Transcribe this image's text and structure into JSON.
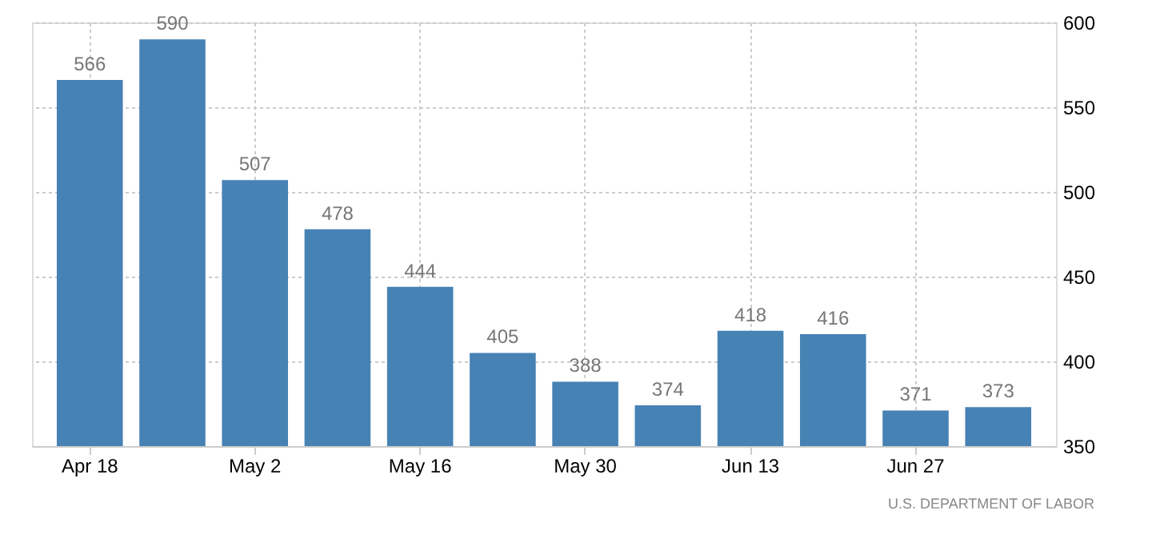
{
  "chart_data": {
    "type": "bar",
    "categories": [
      "Apr 18",
      null,
      "May 2",
      null,
      "May 16",
      null,
      "May 30",
      null,
      "Jun 13",
      null,
      "Jun 27",
      null
    ],
    "values": [
      566,
      590,
      507,
      478,
      444,
      405,
      388,
      374,
      418,
      416,
      371,
      373
    ],
    "color": "#4682b4",
    "ylim": [
      350,
      600
    ],
    "yticks": [
      350,
      400,
      450,
      500,
      550,
      600
    ],
    "grid": true,
    "data_labels": true,
    "annotations": [
      "U.S. DEPARTMENT OF LABOR"
    ]
  }
}
